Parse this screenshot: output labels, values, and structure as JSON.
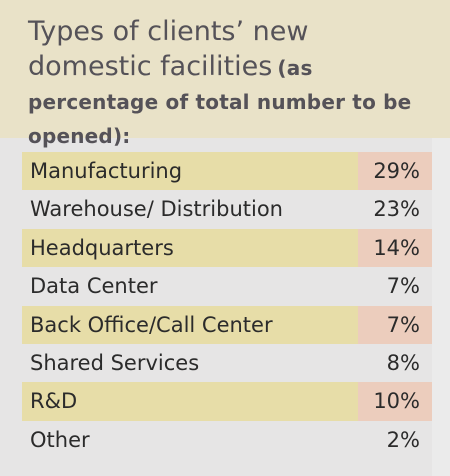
{
  "title": {
    "main": "Types of clients’ new domestic facilities",
    "sub": "(as percentage of total number to be opened):"
  },
  "colors": {
    "header_bg": "#e9e2c8",
    "body_bg": "#e6e5e5",
    "label_highlight": "#e7dda8",
    "value_highlight": "#eccdbd",
    "text": "#2b2b2b",
    "title_text": "#555258"
  },
  "chart_data": {
    "type": "table",
    "title": "Types of clients’ new domestic facilities (as percentage of total number to be opened):",
    "categories": [
      "Manufacturing",
      "Warehouse/ Distribution",
      "Headquarters",
      "Data Center",
      "Back Office/Call Center",
      "Shared Services",
      "R&D",
      "Other"
    ],
    "value_labels": [
      "29%",
      "23%",
      "14%",
      "7%",
      "7%",
      "8%",
      "10%",
      "2%"
    ],
    "values": [
      29,
      23,
      14,
      7,
      7,
      8,
      10,
      2
    ],
    "shaded_rows": [
      true,
      false,
      true,
      false,
      true,
      false,
      true,
      false
    ]
  }
}
